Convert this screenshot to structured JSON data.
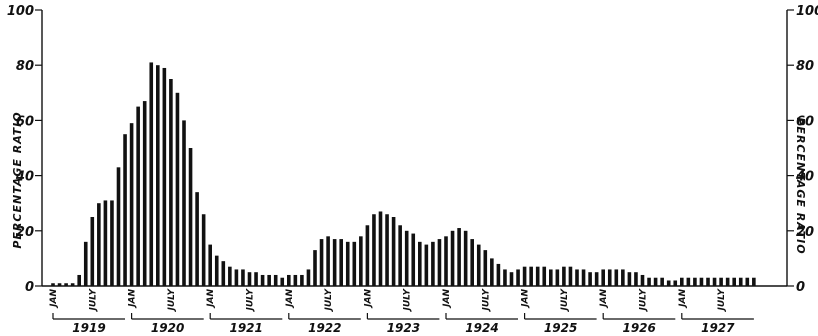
{
  "chart_data": {
    "type": "bar",
    "ylabel_left": "PERCENTAGE RATIO",
    "ylabel_right": "PERCENTAGE RATIO",
    "ylim": [
      0,
      100
    ],
    "yticks": [
      "0",
      "20",
      "40",
      "60",
      "80",
      "100"
    ],
    "start": "1919-01",
    "month_labels": {
      "jan": "JAN",
      "july": "JULY"
    },
    "years": [
      "1919",
      "1920",
      "1921",
      "1922",
      "1923",
      "1924",
      "1925",
      "1926",
      "1927"
    ],
    "values": [
      1,
      1,
      1,
      1,
      4,
      16,
      25,
      30,
      31,
      31,
      43,
      55,
      59,
      65,
      67,
      81,
      80,
      79,
      75,
      70,
      60,
      50,
      34,
      26,
      15,
      11,
      9,
      7,
      6,
      6,
      5,
      5,
      4,
      4,
      4,
      3,
      4,
      4,
      4,
      6,
      13,
      17,
      18,
      17,
      17,
      16,
      16,
      18,
      22,
      26,
      27,
      26,
      25,
      22,
      20,
      19,
      16,
      15,
      16,
      17,
      18,
      20,
      21,
      20,
      17,
      15,
      13,
      10,
      8,
      6,
      5,
      6,
      7,
      7,
      7,
      7,
      6,
      6,
      7,
      7,
      6,
      6,
      5,
      5,
      6,
      6,
      6,
      6,
      5,
      5,
      4,
      3,
      3,
      3,
      2,
      2,
      3,
      3,
      3,
      3,
      3,
      3,
      3,
      3,
      3,
      3,
      3,
      3
    ]
  }
}
